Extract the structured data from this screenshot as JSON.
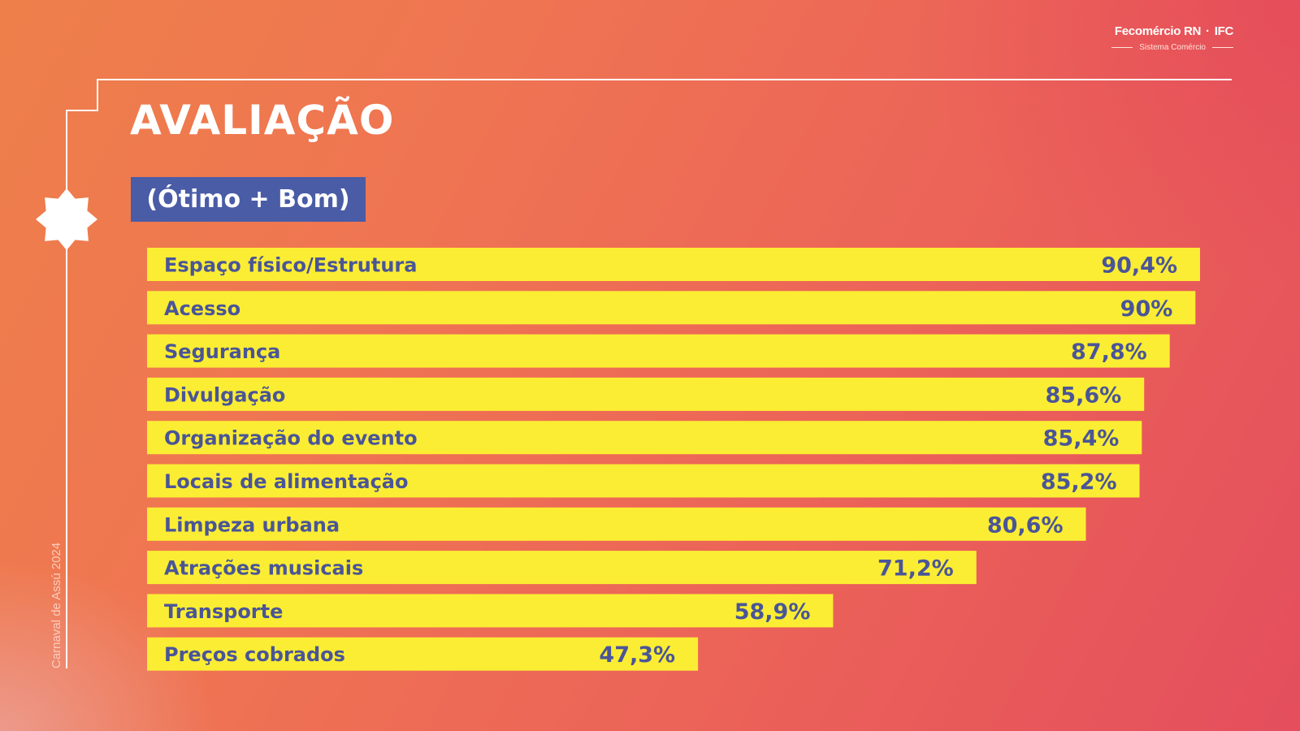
{
  "logo": {
    "brand": "Fecomércio RN",
    "separator": "·",
    "partner": "IFC",
    "tagline": "Sistema Comércio"
  },
  "title": "AVALIAÇÃO",
  "subtitle": "(Ótimo + Bom)",
  "side_caption": "Carnaval de Assú 2024",
  "colors": {
    "bar": "#fbed33",
    "text": "#4a5597",
    "subtitle_bg": "#4a5ca6",
    "frame_line": "#ffffff"
  },
  "chart_data": {
    "type": "bar",
    "orientation": "horizontal",
    "categories": [
      "Espaço físico/Estrutura",
      "Acesso",
      "Segurança",
      "Divulgação",
      "Organização do evento",
      "Locais de alimentação",
      "Limpeza urbana",
      "Atrações musicais",
      "Transporte",
      "Preços cobrados"
    ],
    "values": [
      90.4,
      90,
      87.8,
      85.6,
      85.4,
      85.2,
      80.6,
      71.2,
      58.9,
      47.3
    ],
    "value_labels": [
      "90,4%",
      "90%",
      "87,8%",
      "85,6%",
      "85,4%",
      "85,2%",
      "80,6%",
      "71,2%",
      "58,9%",
      "47,3%"
    ],
    "title": "AVALIAÇÃO",
    "subtitle": "(Ótimo + Bom)",
    "xlabel": "",
    "ylabel": "",
    "xlim": [
      0,
      100
    ],
    "grid": false,
    "legend": "none"
  }
}
